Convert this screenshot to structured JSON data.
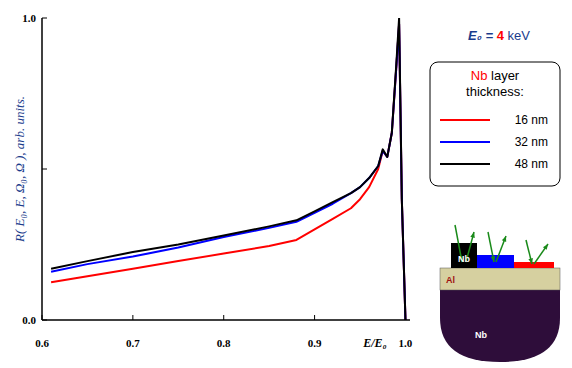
{
  "chart_data": {
    "type": "line",
    "x_label": "E/E₀",
    "y_label": "R( E₀, E, Ω₀, Ω ),  arb. units.",
    "annotation": [
      "E₀ = ",
      "4",
      " keV"
    ],
    "legend_title": "Nb layer thickness:",
    "legend": "right",
    "inset_labels": [
      "Nb",
      "Al",
      "Nb"
    ],
    "xlim": [
      0.6,
      1.005
    ],
    "ylim": [
      0,
      1
    ],
    "xticks": [
      0.6,
      0.7,
      0.8,
      0.9,
      {
        "value": 1,
        "label": "1.0"
      }
    ],
    "yticks": [
      {
        "value": 0,
        "label": "0.0"
      },
      {
        "value": 0.5,
        "label": null
      },
      {
        "value": 1,
        "label": "1.0"
      }
    ],
    "x": [
      0.61,
      0.65,
      0.7,
      0.75,
      0.8,
      0.85,
      0.88,
      0.9,
      0.92,
      0.94,
      0.95,
      0.96,
      0.97,
      0.975,
      0.98,
      0.985,
      0.99,
      0.993,
      0.996,
      1.0
    ],
    "series": [
      {
        "name": "16 nm",
        "color": "#ff0000",
        "values": [
          0.125,
          0.145,
          0.17,
          0.195,
          0.22,
          0.245,
          0.265,
          0.3,
          0.335,
          0.37,
          0.4,
          0.44,
          0.5,
          0.56,
          0.54,
          0.62,
          0.84,
          0.98,
          0.4,
          0.0
        ]
      },
      {
        "name": "32 nm",
        "color": "#0000ff",
        "values": [
          0.16,
          0.185,
          0.21,
          0.24,
          0.275,
          0.305,
          0.325,
          0.355,
          0.385,
          0.42,
          0.44,
          0.47,
          0.51,
          0.56,
          0.54,
          0.62,
          0.84,
          0.98,
          0.4,
          0.0
        ]
      },
      {
        "name": "48 nm",
        "color": "#000000",
        "values": [
          0.17,
          0.195,
          0.225,
          0.25,
          0.28,
          0.31,
          0.33,
          0.36,
          0.39,
          0.42,
          0.44,
          0.47,
          0.51,
          0.565,
          0.54,
          0.62,
          0.85,
          1.0,
          0.4,
          0.0
        ]
      }
    ]
  }
}
